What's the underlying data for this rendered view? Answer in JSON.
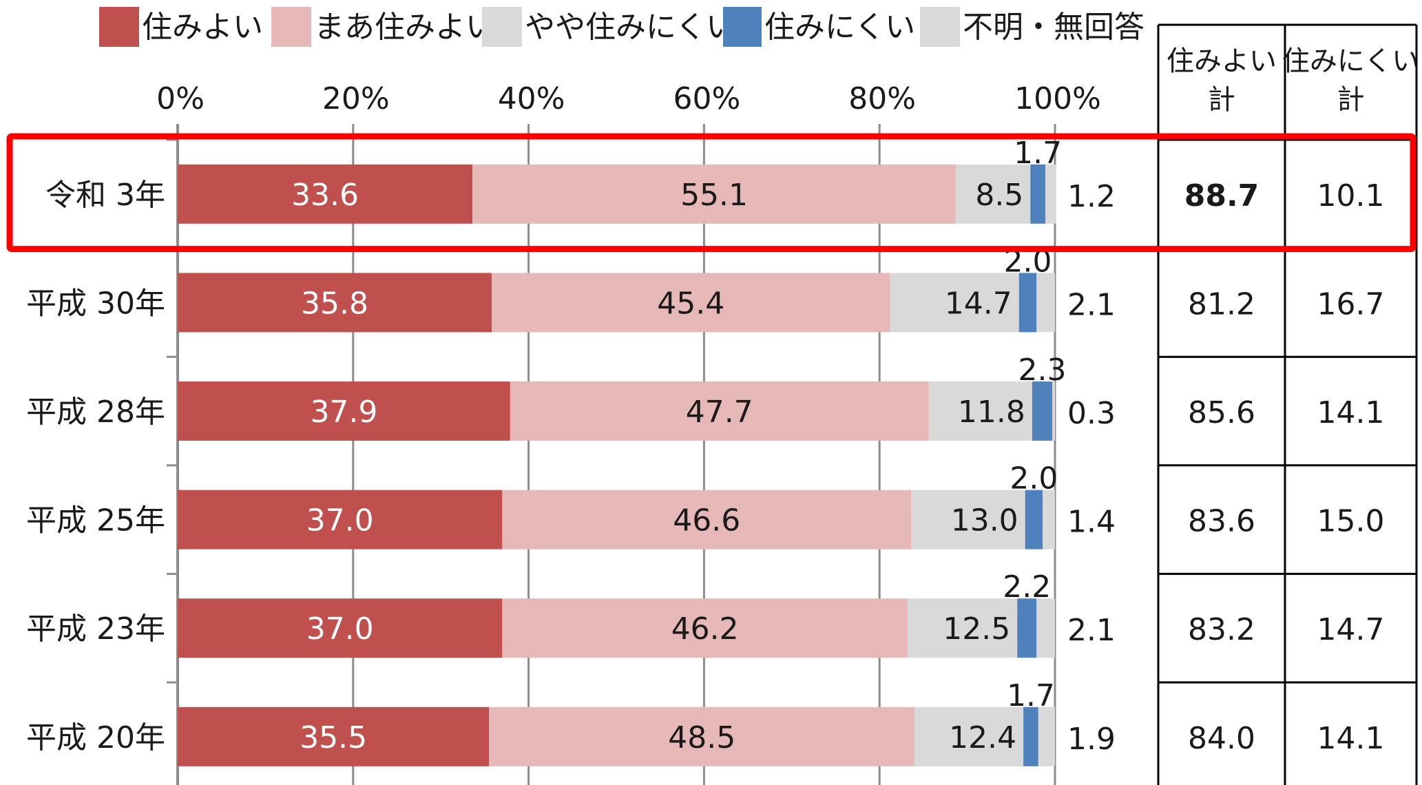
{
  "chart_data": {
    "type": "bar",
    "orientation": "horizontal",
    "stacked": true,
    "categories": [
      "令和 3年",
      "平成 30年",
      "平成 28年",
      "平成 25年",
      "平成 23年",
      "平成 20年"
    ],
    "series": [
      {
        "name": "住みよい",
        "color": "#c0504d",
        "values": [
          33.6,
          35.8,
          37.9,
          37.0,
          37.0,
          35.5
        ]
      },
      {
        "name": "まあ住みよい",
        "color": "#e6b8b7",
        "values": [
          55.1,
          45.4,
          47.7,
          46.6,
          46.2,
          48.5
        ]
      },
      {
        "name": "やや住みにくい",
        "color": "#d9d9d9",
        "values": [
          8.5,
          14.7,
          11.8,
          13.0,
          12.5,
          12.4
        ]
      },
      {
        "name": "住みにくい",
        "color": "#4f81bd",
        "values": [
          1.7,
          2.0,
          2.3,
          2.0,
          2.2,
          1.7
        ]
      },
      {
        "name": "不明・無回答",
        "color": "#d9d9d9",
        "values": [
          1.2,
          2.1,
          0.3,
          1.4,
          2.1,
          1.9
        ]
      }
    ],
    "x_ticks": [
      "0%",
      "20%",
      "40%",
      "60%",
      "80%",
      "100%"
    ],
    "xlim": [
      0,
      100
    ],
    "legend_position": "top",
    "grid": true,
    "highlight_row": 0,
    "highlight_color": "#ff0000"
  },
  "summary_table": {
    "headers": [
      [
        "住みよい",
        "計"
      ],
      [
        "住みにくい",
        "計"
      ]
    ],
    "rows": [
      [
        "88.7",
        "10.1"
      ],
      [
        "81.2",
        "16.7"
      ],
      [
        "85.6",
        "14.1"
      ],
      [
        "83.6",
        "15.0"
      ],
      [
        "83.2",
        "14.7"
      ],
      [
        "84.0",
        "14.1"
      ]
    ],
    "highlight_cell_color": "#ff0000"
  }
}
